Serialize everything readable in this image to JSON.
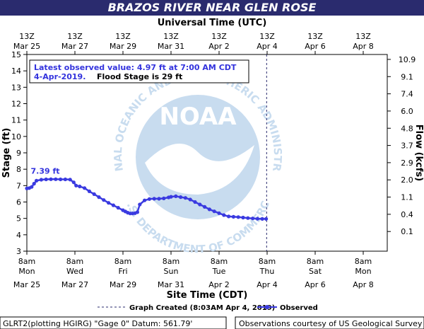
{
  "title": "BRAZOS RIVER NEAR GLEN ROSE",
  "top_axis_title": "Universal Time (UTC)",
  "bottom_axis_title": "Site Time (CDT)",
  "left_axis_title": "Stage (ft)",
  "right_axis_title": "Flow (kcfs)",
  "info": {
    "line1": "Latest observed value:  4.97 ft at 7:00 AM CDT",
    "line2_date": "4-Apr-2019.",
    "line2_flood": "Flood Stage is 29 ft"
  },
  "peak_label": "7.39 ft",
  "watermark": {
    "logo_text": "NOAA",
    "ring_text": "NATIONAL OCEANIC AND ATMOSPHERIC ADMINISTRATION",
    "ring_text_bottom": "U.S. DEPARTMENT OF COMMERCE"
  },
  "legend": {
    "created": "Graph Created (8:03AM Apr 4, 2019)",
    "observed": "Observed"
  },
  "footer": {
    "left": "GLRT2(plotting HGIRG) \"Gage 0\" Datum: 561.79'",
    "right": "Observations courtesy of US Geological Survey"
  },
  "colors": {
    "title_bar": "#2a2b6e",
    "observed": "#3a3ae0",
    "info_text": "#3333dd",
    "watermark": "#c8dcef"
  },
  "chart_data": {
    "type": "line",
    "x_unit": "days since Mar 25 8am CDT",
    "xlim": [
      0,
      15
    ],
    "ylim": [
      3,
      15
    ],
    "y_ticks": [
      3,
      4,
      5,
      6,
      7,
      8,
      9,
      10,
      11,
      12,
      13,
      14,
      15
    ],
    "grid": false,
    "legend_position": "bottom",
    "top_ticks": [
      {
        "x": 0,
        "line1": "13Z",
        "line2": "Mar 25"
      },
      {
        "x": 2,
        "line1": "13Z",
        "line2": "Mar 27"
      },
      {
        "x": 4,
        "line1": "13Z",
        "line2": "Mar 29"
      },
      {
        "x": 6,
        "line1": "13Z",
        "line2": "Mar 31"
      },
      {
        "x": 8,
        "line1": "13Z",
        "line2": "Apr  2"
      },
      {
        "x": 10,
        "line1": "13Z",
        "line2": "Apr  4"
      },
      {
        "x": 12,
        "line1": "13Z",
        "line2": "Apr  6"
      },
      {
        "x": 14,
        "line1": "13Z",
        "line2": "Apr  8"
      }
    ],
    "bottom_ticks": [
      {
        "x": 0,
        "line1": "8am",
        "line2": "Mon",
        "line3": "Mar 25"
      },
      {
        "x": 2,
        "line1": "8am",
        "line2": "Wed",
        "line3": "Mar 27"
      },
      {
        "x": 4,
        "line1": "8am",
        "line2": "Fri",
        "line3": "Mar 29"
      },
      {
        "x": 6,
        "line1": "8am",
        "line2": "Sun",
        "line3": "Mar 31"
      },
      {
        "x": 8,
        "line1": "8am",
        "line2": "Tue",
        "line3": "Apr 2"
      },
      {
        "x": 10,
        "line1": "8am",
        "line2": "Thu",
        "line3": "Apr 4"
      },
      {
        "x": 12,
        "line1": "8am",
        "line2": "Sat",
        "line3": "Apr 6"
      },
      {
        "x": 14,
        "line1": "8am",
        "line2": "Mon",
        "line3": "Apr 8"
      }
    ],
    "flow_ticks": [
      {
        "stage": 4.2,
        "label": "0.1"
      },
      {
        "stage": 5.25,
        "label": "0.4"
      },
      {
        "stage": 6.3,
        "label": "1.1"
      },
      {
        "stage": 7.35,
        "label": "2.0"
      },
      {
        "stage": 8.4,
        "label": "2.9"
      },
      {
        "stage": 9.45,
        "label": "3.7"
      },
      {
        "stage": 10.5,
        "label": "4.8"
      },
      {
        "stage": 11.55,
        "label": "6.0"
      },
      {
        "stage": 12.6,
        "label": "7.4"
      },
      {
        "stage": 13.65,
        "label": "9.1"
      },
      {
        "stage": 14.7,
        "label": "10.9"
      }
    ],
    "graph_created_x": 9.98,
    "series": [
      {
        "name": "Observed",
        "x": [
          0.0,
          0.1,
          0.2,
          0.3,
          0.4,
          0.6,
          0.8,
          1.0,
          1.2,
          1.4,
          1.6,
          1.8,
          1.95,
          2.05,
          2.2,
          2.4,
          2.6,
          2.8,
          3.0,
          3.2,
          3.4,
          3.6,
          3.8,
          4.0,
          4.1,
          4.2,
          4.3,
          4.4,
          4.5,
          4.6,
          4.7,
          4.9,
          5.1,
          5.3,
          5.5,
          5.7,
          5.9,
          6.0,
          6.2,
          6.4,
          6.6,
          6.8,
          7.0,
          7.2,
          7.4,
          7.6,
          7.8,
          8.0,
          8.2,
          8.4,
          8.6,
          8.8,
          9.0,
          9.2,
          9.4,
          9.6,
          9.8,
          9.96
        ],
        "y": [
          6.83,
          6.85,
          6.92,
          7.12,
          7.3,
          7.36,
          7.38,
          7.39,
          7.39,
          7.38,
          7.38,
          7.37,
          7.2,
          7.0,
          6.95,
          6.85,
          6.65,
          6.48,
          6.3,
          6.12,
          5.95,
          5.8,
          5.65,
          5.5,
          5.42,
          5.35,
          5.3,
          5.3,
          5.32,
          5.38,
          5.85,
          6.1,
          6.18,
          6.2,
          6.2,
          6.22,
          6.28,
          6.32,
          6.35,
          6.3,
          6.25,
          6.15,
          6.0,
          5.85,
          5.7,
          5.55,
          5.43,
          5.32,
          5.2,
          5.12,
          5.1,
          5.08,
          5.05,
          5.02,
          5.0,
          4.98,
          4.97,
          4.97
        ]
      }
    ]
  }
}
